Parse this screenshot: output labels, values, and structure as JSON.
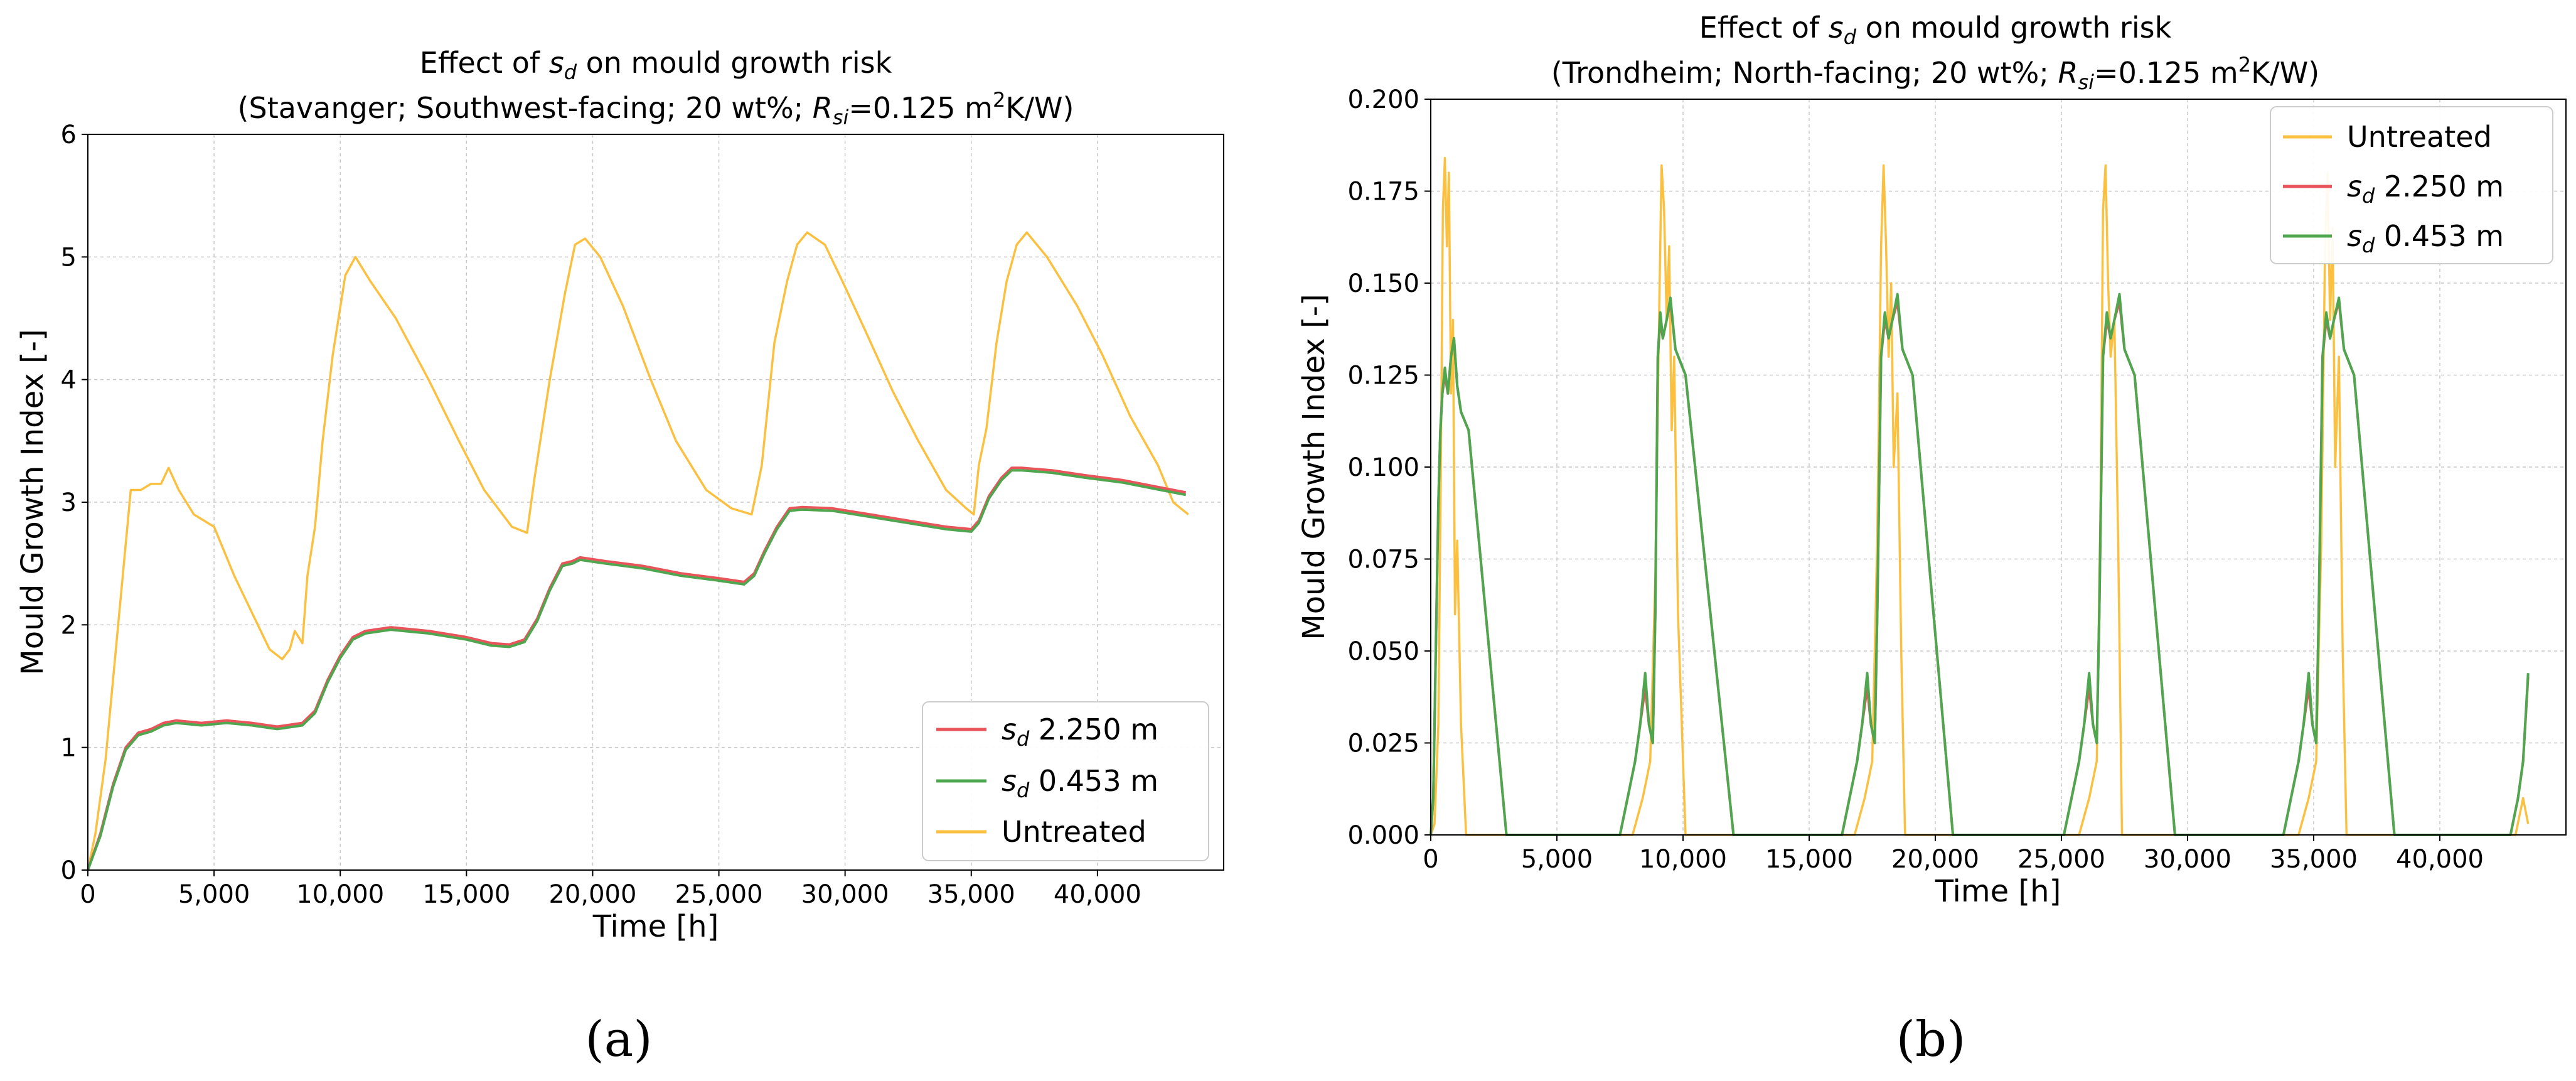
{
  "chart_data": [
    {
      "type": "line",
      "panel_label": "(a)",
      "title_line1": "Effect of s_d on mould growth risk",
      "title_line2": "(Stavanger; Southwest-facing; 20 wt%; R_si=0.125 m²K/W)",
      "title_prefix": "Effect of ",
      "title_suffix": " on mould growth risk",
      "title2_prefix": "(Stavanger; Southwest-facing; 20 wt%; ",
      "title2_suffix": "=0.125 m",
      "title2_unit_tail": "K/W)",
      "xlabel": "Time [h]",
      "ylabel": "Mould Growth Index [-]",
      "xlim": [
        0,
        45000
      ],
      "ylim": [
        0,
        6
      ],
      "grid": true,
      "legend_position": "bottom-right",
      "xticks": [
        0,
        5000,
        10000,
        15000,
        20000,
        25000,
        30000,
        35000,
        40000
      ],
      "xtick_labels": [
        "0",
        "5,000",
        "10,000",
        "15,000",
        "20,000",
        "25,000",
        "30,000",
        "35,000",
        "40,000"
      ],
      "yticks": [
        0,
        1,
        2,
        3,
        4,
        5,
        6
      ],
      "ytick_labels": [
        "0",
        "1",
        "2",
        "3",
        "4",
        "5",
        "6"
      ],
      "legend": [
        {
          "label": "s_d 2.250 m",
          "value_text": " 2.250 m",
          "color": "#e8545a"
        },
        {
          "label": "s_d 0.453 m",
          "value_text": " 0.453 m",
          "color": "#4ea64e"
        },
        {
          "label": "Untreated",
          "value_text": "Untreated",
          "color": "#fbc040"
        }
      ],
      "series": [
        {
          "name": "Untreated",
          "color": "#fbc040",
          "x": [
            0,
            300,
            700,
            1200,
            1700,
            2100,
            2500,
            2900,
            3200,
            3600,
            4200,
            5000,
            5800,
            6500,
            7200,
            7700,
            8000,
            8200,
            8500,
            8700,
            9000,
            9300,
            9700,
            10200,
            10600,
            11200,
            12200,
            13500,
            14700,
            15700,
            16800,
            17400,
            17700,
            18300,
            18900,
            19300,
            19700,
            20300,
            21200,
            22300,
            23300,
            24500,
            25500,
            26300,
            26700,
            27200,
            27700,
            28100,
            28500,
            29200,
            29900,
            30800,
            31900,
            32900,
            34000,
            34800,
            35100,
            35300,
            35600,
            36000,
            36400,
            36800,
            37200,
            38000,
            39200,
            40200,
            41300,
            42400,
            43000,
            43300,
            43600
          ],
          "y": [
            0,
            0.3,
            0.9,
            2.0,
            3.1,
            3.1,
            3.15,
            3.15,
            3.28,
            3.1,
            2.9,
            2.8,
            2.4,
            2.1,
            1.8,
            1.72,
            1.8,
            1.95,
            1.85,
            2.4,
            2.8,
            3.5,
            4.2,
            4.85,
            5.0,
            4.8,
            4.5,
            4.0,
            3.5,
            3.1,
            2.8,
            2.75,
            3.2,
            4.0,
            4.7,
            5.1,
            5.15,
            5.0,
            4.6,
            4.0,
            3.5,
            3.1,
            2.95,
            2.9,
            3.3,
            4.3,
            4.8,
            5.1,
            5.2,
            5.1,
            4.8,
            4.4,
            3.9,
            3.5,
            3.1,
            2.95,
            2.9,
            3.3,
            3.6,
            4.3,
            4.8,
            5.1,
            5.2,
            5.0,
            4.6,
            4.2,
            3.7,
            3.3,
            3.0,
            2.95,
            2.9
          ]
        },
        {
          "name": "s_d 2.250 m",
          "color": "#e8545a",
          "x": [
            0,
            500,
            1000,
            1500,
            2000,
            2500,
            3000,
            3500,
            4500,
            5500,
            6500,
            7500,
            8500,
            9000,
            9500,
            10000,
            10500,
            11000,
            12000,
            13500,
            15000,
            16000,
            16700,
            17300,
            17800,
            18300,
            18800,
            19200,
            19500,
            20500,
            22000,
            23500,
            25000,
            26000,
            26400,
            26800,
            27300,
            27800,
            28300,
            29500,
            31000,
            32500,
            34000,
            35000,
            35300,
            35700,
            36200,
            36600,
            37000,
            38200,
            39500,
            41000,
            42500,
            43500
          ],
          "y": [
            0,
            0.3,
            0.7,
            1.0,
            1.12,
            1.15,
            1.2,
            1.22,
            1.2,
            1.22,
            1.2,
            1.17,
            1.2,
            1.3,
            1.55,
            1.75,
            1.9,
            1.95,
            1.98,
            1.95,
            1.9,
            1.85,
            1.84,
            1.88,
            2.05,
            2.3,
            2.5,
            2.52,
            2.55,
            2.52,
            2.48,
            2.42,
            2.38,
            2.35,
            2.42,
            2.6,
            2.8,
            2.95,
            2.96,
            2.95,
            2.9,
            2.85,
            2.8,
            2.78,
            2.85,
            3.05,
            3.2,
            3.28,
            3.28,
            3.26,
            3.22,
            3.18,
            3.12,
            3.08
          ]
        },
        {
          "name": "s_d 0.453 m",
          "color": "#4ea64e",
          "x": [
            0,
            500,
            1000,
            1500,
            2000,
            2500,
            3000,
            3500,
            4500,
            5500,
            6500,
            7500,
            8500,
            9000,
            9500,
            10000,
            10500,
            11000,
            12000,
            13500,
            15000,
            16000,
            16700,
            17300,
            17800,
            18300,
            18800,
            19200,
            19500,
            20500,
            22000,
            23500,
            25000,
            26000,
            26400,
            26800,
            27300,
            27800,
            28300,
            29500,
            31000,
            32500,
            34000,
            35000,
            35300,
            35700,
            36200,
            36600,
            37000,
            38200,
            39500,
            41000,
            42500,
            43500
          ],
          "y": [
            0,
            0.28,
            0.68,
            0.98,
            1.1,
            1.13,
            1.18,
            1.2,
            1.18,
            1.2,
            1.18,
            1.15,
            1.18,
            1.28,
            1.53,
            1.73,
            1.88,
            1.93,
            1.96,
            1.93,
            1.88,
            1.83,
            1.82,
            1.86,
            2.03,
            2.28,
            2.48,
            2.5,
            2.53,
            2.5,
            2.46,
            2.4,
            2.36,
            2.33,
            2.4,
            2.58,
            2.78,
            2.93,
            2.94,
            2.93,
            2.88,
            2.83,
            2.78,
            2.76,
            2.83,
            3.03,
            3.18,
            3.26,
            3.26,
            3.24,
            3.2,
            3.16,
            3.1,
            3.06
          ]
        }
      ]
    },
    {
      "type": "line",
      "panel_label": "(b)",
      "title_line1": "Effect of s_d on mould growth risk",
      "title_line2": "(Trondheim; North-facing; 20 wt%; R_si=0.125 m²K/W)",
      "title_prefix": "Effect of ",
      "title_suffix": " on mould growth risk",
      "title2_prefix": "(Trondheim; North-facing; 20 wt%; ",
      "title2_suffix": "=0.125 m",
      "title2_unit_tail": "K/W)",
      "xlabel": "Time [h]",
      "ylabel": "Mould Growth Index [-]",
      "xlim": [
        0,
        45000
      ],
      "ylim": [
        0,
        0.2
      ],
      "grid": true,
      "legend_position": "top-right",
      "xticks": [
        0,
        5000,
        10000,
        15000,
        20000,
        25000,
        30000,
        35000,
        40000
      ],
      "xtick_labels": [
        "0",
        "5,000",
        "10,000",
        "15,000",
        "20,000",
        "25,000",
        "30,000",
        "35,000",
        "40,000"
      ],
      "yticks": [
        0,
        0.025,
        0.05,
        0.075,
        0.1,
        0.125,
        0.15,
        0.175,
        0.2
      ],
      "ytick_labels": [
        "0.000",
        "0.025",
        "0.050",
        "0.075",
        "0.100",
        "0.125",
        "0.150",
        "0.175",
        "0.200"
      ],
      "legend": [
        {
          "label": "Untreated",
          "value_text": "Untreated",
          "color": "#fbc040"
        },
        {
          "label": "s_d 2.250 m",
          "value_text": " 2.250 m",
          "color": "#e8545a"
        },
        {
          "label": "s_d 0.453 m",
          "value_text": " 0.453 m",
          "color": "#4ea64e"
        }
      ],
      "series": [
        {
          "name": "Untreated",
          "color": "#fbc040",
          "x": [
            0,
            150,
            300,
            400,
            480,
            560,
            640,
            720,
            800,
            880,
            960,
            1050,
            1200,
            1400,
            8000,
            8400,
            8700,
            8900,
            9050,
            9150,
            9250,
            9350,
            9450,
            9550,
            9650,
            9800,
            9950,
            10100,
            16800,
            17200,
            17500,
            17700,
            17850,
            17950,
            18050,
            18150,
            18250,
            18350,
            18500,
            18650,
            18800,
            25700,
            26100,
            26400,
            26550,
            26650,
            26750,
            26850,
            26950,
            27100,
            27250,
            27400,
            34400,
            34800,
            35100,
            35300,
            35450,
            35550,
            35650,
            35750,
            35850,
            36000,
            36150,
            36300,
            43000,
            43300,
            43500
          ],
          "y": [
            0,
            0.003,
            0.03,
            0.1,
            0.17,
            0.184,
            0.16,
            0.18,
            0.12,
            0.14,
            0.06,
            0.08,
            0.03,
            0,
            0,
            0.01,
            0.02,
            0.07,
            0.14,
            0.182,
            0.17,
            0.14,
            0.16,
            0.11,
            0.13,
            0.06,
            0.03,
            0,
            0,
            0.01,
            0.02,
            0.08,
            0.16,
            0.182,
            0.16,
            0.13,
            0.15,
            0.1,
            0.12,
            0.05,
            0,
            0,
            0.01,
            0.02,
            0.09,
            0.17,
            0.182,
            0.15,
            0.13,
            0.14,
            0.08,
            0,
            0,
            0.01,
            0.02,
            0.08,
            0.16,
            0.18,
            0.14,
            0.165,
            0.1,
            0.13,
            0.05,
            0,
            0,
            0.01,
            0.003
          ]
        },
        {
          "name": "s_d 2.250 m",
          "color": "#e8545a",
          "x": [
            0,
            100,
            200,
            300,
            380,
            460,
            560,
            680,
            800,
            920,
            1050,
            1200,
            1500,
            3000,
            7500,
            7800,
            8100,
            8300,
            8500,
            8650,
            8800,
            8900,
            9000,
            9100,
            9200,
            9350,
            9500,
            9700,
            10100,
            12000,
            16300,
            16600,
            16900,
            17100,
            17300,
            17450,
            17600,
            17700,
            17850,
            18000,
            18150,
            18300,
            18500,
            18700,
            19100,
            20700,
            25100,
            25400,
            25700,
            25900,
            26100,
            26250,
            26400,
            26500,
            26650,
            26800,
            26950,
            27100,
            27300,
            27500,
            27900,
            29500,
            33800,
            34100,
            34400,
            34600,
            34800,
            34950,
            35100,
            35200,
            35350,
            35500,
            35650,
            35800,
            36000,
            36200,
            36600,
            38200,
            42800,
            43100,
            43300,
            43500
          ],
          "y": [
            0,
            0.01,
            0.05,
            0.09,
            0.11,
            0.12,
            0.125,
            0.12,
            0.13,
            0.135,
            0.122,
            0.115,
            0.11,
            0,
            0,
            0.01,
            0.02,
            0.03,
            0.04,
            0.03,
            0.025,
            0.06,
            0.13,
            0.14,
            0.135,
            0.14,
            0.145,
            0.132,
            0.125,
            0,
            0,
            0.01,
            0.02,
            0.03,
            0.04,
            0.03,
            0.025,
            0.06,
            0.13,
            0.14,
            0.135,
            0.14,
            0.145,
            0.132,
            0.125,
            0,
            0,
            0.01,
            0.02,
            0.03,
            0.04,
            0.03,
            0.025,
            0.06,
            0.13,
            0.14,
            0.135,
            0.14,
            0.145,
            0.132,
            0.125,
            0,
            0,
            0.01,
            0.02,
            0.03,
            0.04,
            0.03,
            0.025,
            0.06,
            0.13,
            0.14,
            0.135,
            0.14,
            0.145,
            0.132,
            0.125,
            0,
            0,
            0.01,
            0.02,
            0.043
          ]
        },
        {
          "name": "s_d 0.453 m",
          "color": "#4ea64e",
          "x": [
            0,
            100,
            200,
            300,
            380,
            460,
            560,
            680,
            800,
            920,
            1050,
            1200,
            1500,
            3000,
            7500,
            7800,
            8100,
            8300,
            8500,
            8650,
            8800,
            8900,
            9000,
            9100,
            9200,
            9350,
            9500,
            9700,
            10100,
            12000,
            16300,
            16600,
            16900,
            17100,
            17300,
            17450,
            17600,
            17700,
            17850,
            18000,
            18150,
            18300,
            18500,
            18700,
            19100,
            20700,
            25100,
            25400,
            25700,
            25900,
            26100,
            26250,
            26400,
            26500,
            26650,
            26800,
            26950,
            27100,
            27300,
            27500,
            27900,
            29500,
            33800,
            34100,
            34400,
            34600,
            34800,
            34950,
            35100,
            35200,
            35350,
            35500,
            35650,
            35800,
            36000,
            36200,
            36600,
            38200,
            42800,
            43100,
            43300,
            43500
          ],
          "y": [
            0,
            0.01,
            0.05,
            0.09,
            0.11,
            0.12,
            0.127,
            0.12,
            0.13,
            0.135,
            0.122,
            0.115,
            0.11,
            0,
            0,
            0.01,
            0.02,
            0.03,
            0.044,
            0.03,
            0.025,
            0.06,
            0.13,
            0.142,
            0.135,
            0.14,
            0.146,
            0.132,
            0.125,
            0,
            0,
            0.01,
            0.02,
            0.03,
            0.044,
            0.03,
            0.025,
            0.06,
            0.13,
            0.142,
            0.135,
            0.14,
            0.147,
            0.132,
            0.125,
            0,
            0,
            0.01,
            0.02,
            0.03,
            0.044,
            0.03,
            0.025,
            0.06,
            0.13,
            0.142,
            0.135,
            0.14,
            0.147,
            0.132,
            0.125,
            0,
            0,
            0.01,
            0.02,
            0.03,
            0.044,
            0.03,
            0.025,
            0.06,
            0.13,
            0.142,
            0.135,
            0.14,
            0.146,
            0.132,
            0.125,
            0,
            0,
            0.01,
            0.02,
            0.044
          ]
        }
      ]
    }
  ]
}
